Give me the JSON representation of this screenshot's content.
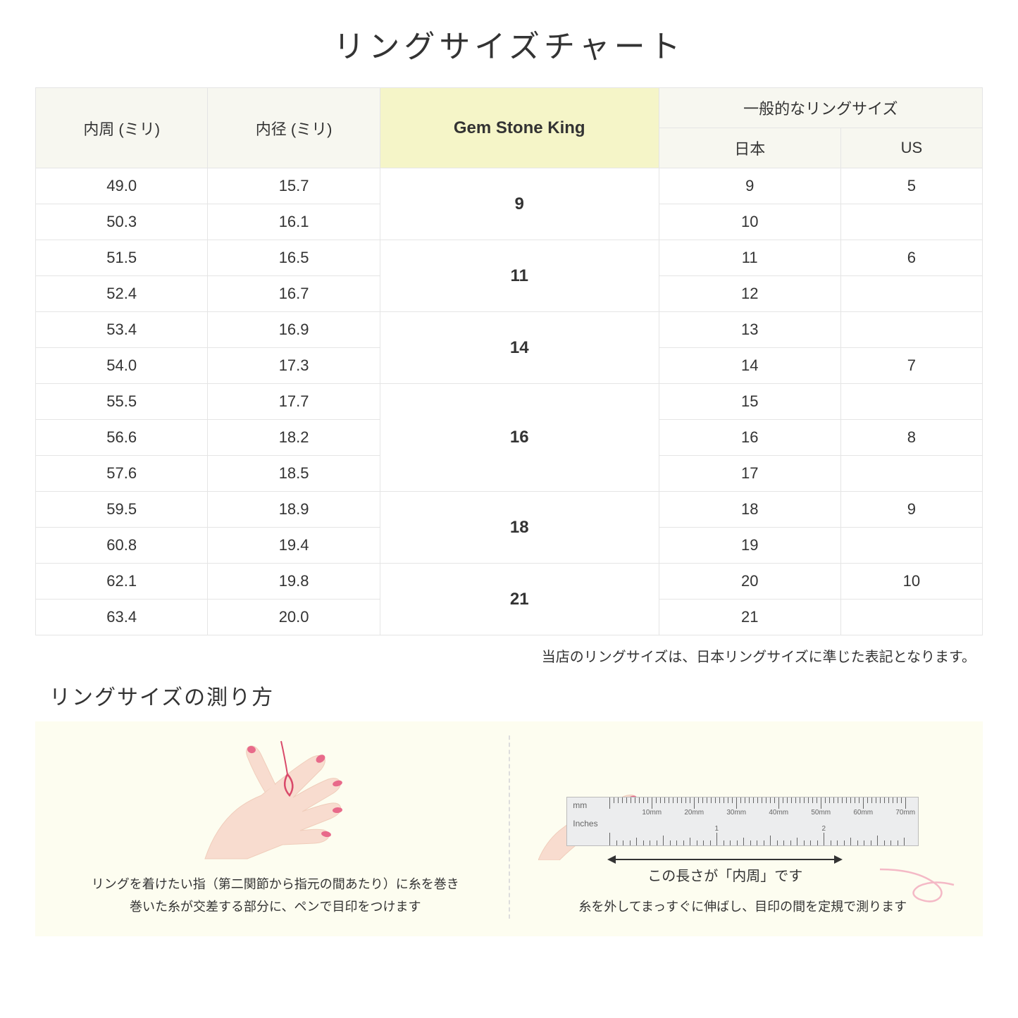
{
  "title": "リングサイズチャート",
  "table": {
    "headers": {
      "circumference": "内周 (ミリ)",
      "diameter": "内径 (ミリ)",
      "gsk": "Gem Stone King",
      "general": "一般的なリングサイズ",
      "japan": "日本",
      "us": "US"
    },
    "groups": [
      {
        "gsk": "9",
        "rows": [
          {
            "c": "49.0",
            "d": "15.7",
            "jp": "9",
            "us": "5"
          },
          {
            "c": "50.3",
            "d": "16.1",
            "jp": "10",
            "us": ""
          }
        ]
      },
      {
        "gsk": "11",
        "rows": [
          {
            "c": "51.5",
            "d": "16.5",
            "jp": "11",
            "us": "6"
          },
          {
            "c": "52.4",
            "d": "16.7",
            "jp": "12",
            "us": ""
          }
        ]
      },
      {
        "gsk": "14",
        "rows": [
          {
            "c": "53.4",
            "d": "16.9",
            "jp": "13",
            "us": ""
          },
          {
            "c": "54.0",
            "d": "17.3",
            "jp": "14",
            "us": "7"
          }
        ]
      },
      {
        "gsk": "16",
        "rows": [
          {
            "c": "55.5",
            "d": "17.7",
            "jp": "15",
            "us": ""
          },
          {
            "c": "56.6",
            "d": "18.2",
            "jp": "16",
            "us": "8"
          },
          {
            "c": "57.6",
            "d": "18.5",
            "jp": "17",
            "us": ""
          }
        ]
      },
      {
        "gsk": "18",
        "rows": [
          {
            "c": "59.5",
            "d": "18.9",
            "jp": "18",
            "us": "9"
          },
          {
            "c": "60.8",
            "d": "19.4",
            "jp": "19",
            "us": ""
          }
        ]
      },
      {
        "gsk": "21",
        "rows": [
          {
            "c": "62.1",
            "d": "19.8",
            "jp": "20",
            "us": "10"
          },
          {
            "c": "63.4",
            "d": "20.0",
            "jp": "21",
            "us": ""
          }
        ]
      }
    ]
  },
  "note": "当店のリングサイズは、日本リングサイズに準じた表記となります。",
  "measure": {
    "title": "リングサイズの測り方",
    "left_text_1": "リングを着けたい指（第二関節から指元の間あたり）に糸を巻き",
    "left_text_2": "巻いた糸が交差する部分に、ペンで目印をつけます",
    "right_arrow_label": "この長さが「内周」です",
    "right_text": "糸を外してまっすぐに伸ばし、目印の間を定規で測ります",
    "ruler": {
      "mm_label": "mm",
      "in_label": "Inches",
      "mm_ticks": [
        "10mm",
        "20mm",
        "30mm",
        "40mm",
        "50mm",
        "60mm",
        "70mm"
      ],
      "in_ticks": [
        "1",
        "2"
      ]
    }
  },
  "colors": {
    "header_bg": "#f7f7f0",
    "highlight_bg": "#f5f5c8",
    "border": "#e5e5e5",
    "panel_bg": "#fdfdf0",
    "thread": "#d94a6a",
    "skin": "#f8dccf",
    "skin_dark": "#f0cdbb",
    "nail": "#e86a8a"
  }
}
